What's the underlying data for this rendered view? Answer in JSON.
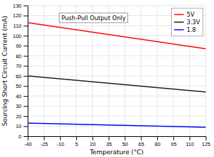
{
  "chart_data": {
    "type": "line",
    "xlabel": "Temperature (°C)",
    "ylabel": "Sourcing Short Circuit Current (mA)",
    "annotation": "Push-Pull Output Only",
    "x": [
      -40,
      125
    ],
    "series": [
      {
        "name": "5V",
        "color": "#ff0000",
        "values": [
          113,
          87
        ]
      },
      {
        "name": "3.3V",
        "color": "#1a1a1a",
        "values": [
          60,
          44
        ]
      },
      {
        "name": "1.8",
        "color": "#0000ff",
        "values": [
          13,
          9
        ]
      }
    ],
    "xlim": [
      -40,
      125
    ],
    "ylim": [
      0,
      130
    ],
    "xticks": [
      -40,
      -25,
      -10,
      5,
      20,
      35,
      50,
      65,
      80,
      95,
      110,
      125
    ],
    "yticks": [
      0,
      10,
      20,
      30,
      40,
      50,
      60,
      70,
      80,
      90,
      100,
      110,
      120,
      130
    ],
    "grid": true,
    "legend": "upper right"
  }
}
